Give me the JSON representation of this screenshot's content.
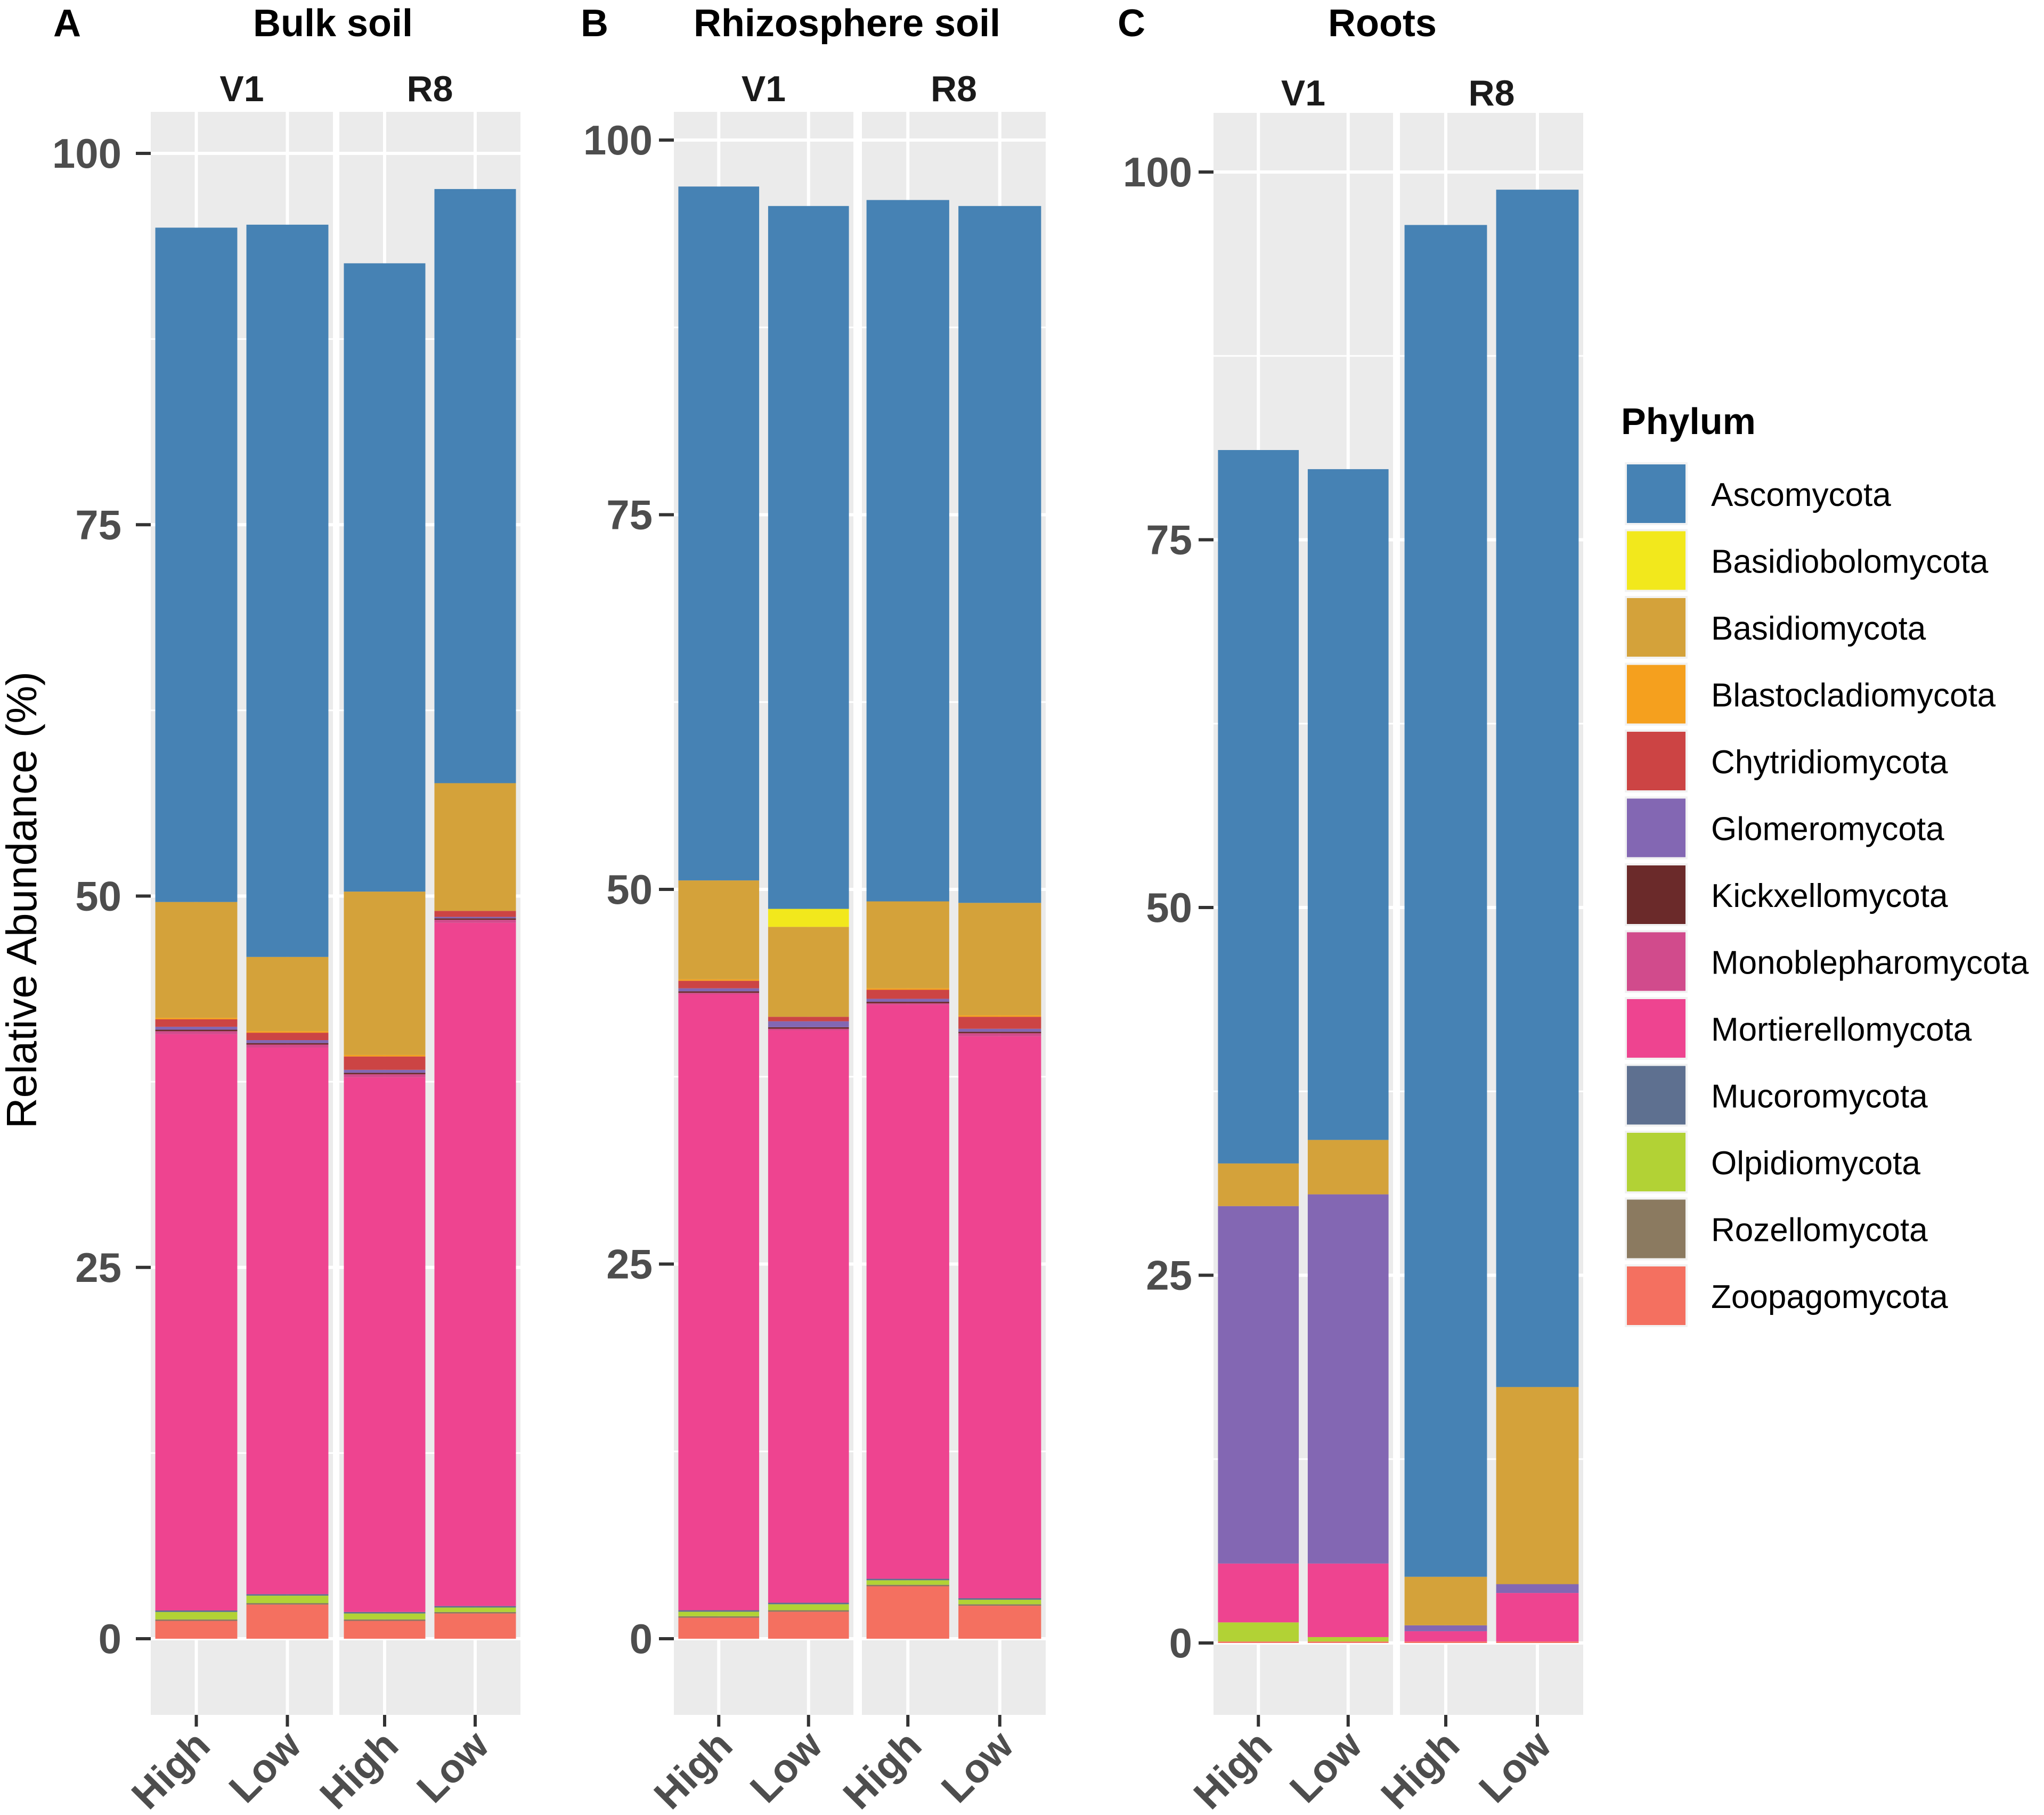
{
  "chart_data": {
    "type": "bar",
    "stacked": true,
    "ylabel": "Relative Abundance (%)",
    "ylim": [
      0,
      100
    ],
    "yticks": [
      0,
      25,
      50,
      75,
      100
    ],
    "legend": {
      "title": "Phylum",
      "position": "right",
      "items": [
        {
          "name": "Ascomycota",
          "color": "#4682b4"
        },
        {
          "name": "Basidiobolomycota",
          "color": "#f2e81c"
        },
        {
          "name": "Basidiomycota",
          "color": "#d4a23a"
        },
        {
          "name": "Blastocladiomycota",
          "color": "#f5a01e"
        },
        {
          "name": "Chytridiomycota",
          "color": "#cc4444"
        },
        {
          "name": "Glomeromycota",
          "color": "#8367b3"
        },
        {
          "name": "Kickxellomycota",
          "color": "#6b2a2a"
        },
        {
          "name": "Monoblepharomycota",
          "color": "#d14b8c"
        },
        {
          "name": "Mortierellomycota",
          "color": "#ee4490"
        },
        {
          "name": "Mucoromycota",
          "color": "#5e7090"
        },
        {
          "name": "Olpidiomycota",
          "color": "#b2d235"
        },
        {
          "name": "Rozellomycota",
          "color": "#8b7a60"
        },
        {
          "name": "Zoopagomycota",
          "color": "#f47060"
        }
      ]
    },
    "panels": [
      {
        "letter": "A",
        "title": "Bulk soil",
        "groups": [
          {
            "label": "V1",
            "bars": [
              {
                "x": "High",
                "values": {
                  "Zoopagomycota": 1.2,
                  "Rozellomycota": 0.1,
                  "Olpidiomycota": 0.5,
                  "Mucoromycota": 0.1,
                  "Mortierellomycota": 38.8,
                  "Monoblepharomycota": 0.2,
                  "Kickxellomycota": 0.1,
                  "Glomeromycota": 0.2,
                  "Chytridiomycota": 0.5,
                  "Blastocladiomycota": 0.1,
                  "Basidiomycota": 7.8,
                  "Basidiobolomycota": 0.0,
                  "Ascomycota": 45.4
                }
              },
              {
                "x": "Low",
                "values": {
                  "Zoopagomycota": 2.3,
                  "Rozellomycota": 0.1,
                  "Olpidiomycota": 0.5,
                  "Mucoromycota": 0.1,
                  "Mortierellomycota": 36.8,
                  "Monoblepharomycota": 0.2,
                  "Kickxellomycota": 0.1,
                  "Glomeromycota": 0.2,
                  "Chytridiomycota": 0.5,
                  "Blastocladiomycota": 0.1,
                  "Basidiomycota": 5.0,
                  "Basidiobolomycota": 0.0,
                  "Ascomycota": 49.3
                }
              }
            ]
          },
          {
            "label": "R8",
            "bars": [
              {
                "x": "High",
                "values": {
                  "Zoopagomycota": 1.2,
                  "Rozellomycota": 0.1,
                  "Olpidiomycota": 0.4,
                  "Mucoromycota": 0.1,
                  "Mortierellomycota": 36.0,
                  "Monoblepharomycota": 0.2,
                  "Kickxellomycota": 0.1,
                  "Glomeromycota": 0.2,
                  "Chytridiomycota": 0.9,
                  "Blastocladiomycota": 0.1,
                  "Basidiomycota": 11.0,
                  "Basidiobolomycota": 0.0,
                  "Ascomycota": 42.3
                }
              },
              {
                "x": "Low",
                "values": {
                  "Zoopagomycota": 1.7,
                  "Rozellomycota": 0.1,
                  "Olpidiomycota": 0.3,
                  "Mucoromycota": 0.1,
                  "Mortierellomycota": 46.0,
                  "Monoblepharomycota": 0.2,
                  "Kickxellomycota": 0.1,
                  "Glomeromycota": 0.1,
                  "Chytridiomycota": 0.4,
                  "Blastocladiomycota": 0.0,
                  "Basidiomycota": 8.6,
                  "Basidiobolomycota": 0.0,
                  "Ascomycota": 40.0
                }
              }
            ]
          }
        ]
      },
      {
        "letter": "B",
        "title": "Rhizosphere soil",
        "groups": [
          {
            "label": "V1",
            "bars": [
              {
                "x": "High",
                "values": {
                  "Zoopagomycota": 1.4,
                  "Rozellomycota": 0.1,
                  "Olpidiomycota": 0.3,
                  "Mucoromycota": 0.1,
                  "Mortierellomycota": 41.1,
                  "Monoblepharomycota": 0.1,
                  "Kickxellomycota": 0.1,
                  "Glomeromycota": 0.2,
                  "Chytridiomycota": 0.5,
                  "Blastocladiomycota": 0.1,
                  "Basidiomycota": 6.6,
                  "Basidiobolomycota": 0.0,
                  "Ascomycota": 46.3
                }
              },
              {
                "x": "Low",
                "values": {
                  "Zoopagomycota": 1.8,
                  "Rozellomycota": 0.1,
                  "Olpidiomycota": 0.4,
                  "Mucoromycota": 0.1,
                  "Mortierellomycota": 38.2,
                  "Monoblepharomycota": 0.1,
                  "Kickxellomycota": 0.1,
                  "Glomeromycota": 0.4,
                  "Chytridiomycota": 0.3,
                  "Blastocladiomycota": 0.0,
                  "Basidiomycota": 6.0,
                  "Basidiobolomycota": 1.2,
                  "Ascomycota": 46.9
                }
              }
            ]
          },
          {
            "label": "R8",
            "bars": [
              {
                "x": "High",
                "values": {
                  "Zoopagomycota": 3.5,
                  "Rozellomycota": 0.1,
                  "Olpidiomycota": 0.3,
                  "Mucoromycota": 0.1,
                  "Mortierellomycota": 38.3,
                  "Monoblepharomycota": 0.1,
                  "Kickxellomycota": 0.1,
                  "Glomeromycota": 0.2,
                  "Chytridiomycota": 0.6,
                  "Blastocladiomycota": 0.1,
                  "Basidiomycota": 5.8,
                  "Basidiobolomycota": 0.0,
                  "Ascomycota": 46.8
                }
              },
              {
                "x": "Low",
                "values": {
                  "Zoopagomycota": 2.2,
                  "Rozellomycota": 0.1,
                  "Olpidiomycota": 0.3,
                  "Mucoromycota": 0.1,
                  "Mortierellomycota": 37.5,
                  "Monoblepharomycota": 0.2,
                  "Kickxellomycota": 0.1,
                  "Glomeromycota": 0.2,
                  "Chytridiomycota": 0.8,
                  "Blastocladiomycota": 0.1,
                  "Basidiomycota": 7.5,
                  "Basidiobolomycota": 0.0,
                  "Ascomycota": 46.5
                }
              }
            ]
          }
        ]
      },
      {
        "letter": "C",
        "title": "Roots",
        "groups": [
          {
            "label": "V1",
            "bars": [
              {
                "x": "High",
                "values": {
                  "Zoopagomycota": 0.1,
                  "Rozellomycota": 0.0,
                  "Olpidiomycota": 1.3,
                  "Mucoromycota": 0.0,
                  "Mortierellomycota": 4.0,
                  "Monoblepharomycota": 0.0,
                  "Kickxellomycota": 0.0,
                  "Glomeromycota": 24.3,
                  "Chytridiomycota": 0.0,
                  "Blastocladiomycota": 0.0,
                  "Basidiomycota": 2.9,
                  "Basidiobolomycota": 0.0,
                  "Ascomycota": 48.5
                }
              },
              {
                "x": "Low",
                "values": {
                  "Zoopagomycota": 0.1,
                  "Rozellomycota": 0.0,
                  "Olpidiomycota": 0.3,
                  "Mucoromycota": 0.0,
                  "Mortierellomycota": 5.0,
                  "Monoblepharomycota": 0.0,
                  "Kickxellomycota": 0.0,
                  "Glomeromycota": 25.1,
                  "Chytridiomycota": 0.0,
                  "Blastocladiomycota": 0.0,
                  "Basidiomycota": 3.7,
                  "Basidiobolomycota": 0.0,
                  "Ascomycota": 45.6
                }
              }
            ]
          },
          {
            "label": "R8",
            "bars": [
              {
                "x": "High",
                "values": {
                  "Zoopagomycota": 0.1,
                  "Rozellomycota": 0.0,
                  "Olpidiomycota": 0.0,
                  "Mucoromycota": 0.0,
                  "Mortierellomycota": 0.7,
                  "Monoblepharomycota": 0.0,
                  "Kickxellomycota": 0.0,
                  "Glomeromycota": 0.4,
                  "Chytridiomycota": 0.0,
                  "Blastocladiomycota": 0.0,
                  "Basidiomycota": 3.3,
                  "Basidiobolomycota": 0.0,
                  "Ascomycota": 91.9
                }
              },
              {
                "x": "Low",
                "values": {
                  "Zoopagomycota": 0.1,
                  "Rozellomycota": 0.0,
                  "Olpidiomycota": 0.0,
                  "Mucoromycota": 0.0,
                  "Mortierellomycota": 3.3,
                  "Monoblepharomycota": 0.0,
                  "Kickxellomycota": 0.0,
                  "Glomeromycota": 0.6,
                  "Chytridiomycota": 0.0,
                  "Blastocladiomycota": 0.0,
                  "Basidiomycota": 13.4,
                  "Basidiobolomycota": 0.0,
                  "Ascomycota": 81.4
                }
              }
            ]
          }
        ]
      }
    ]
  }
}
